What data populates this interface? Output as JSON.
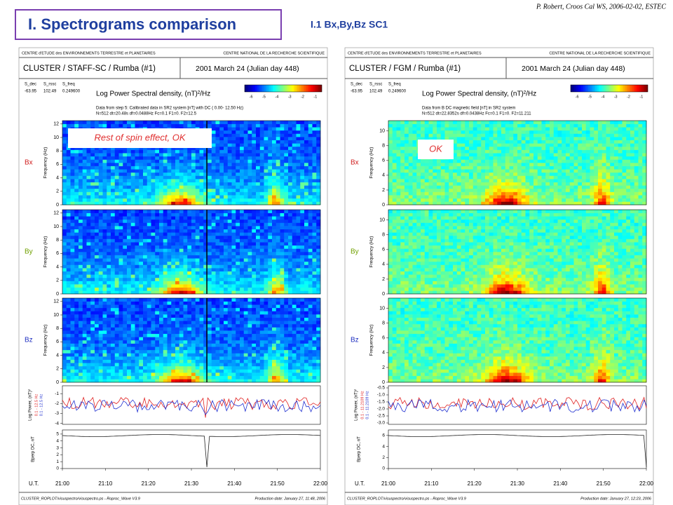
{
  "header": {
    "title": "I. Spectrograms comparison",
    "subtitle": "I.1 Bx,By,Bz SC1",
    "credit": "P. Robert, Croos Cal WS, 2006-02-02, ESTEC"
  },
  "panels": [
    {
      "institute_left": "CENTRE d'ETUDE des ENVIRONNEMENTS TERRESTRE et PLANETAIRES",
      "institute_right": "CENTRE NATIONAL DE LA RECHERCHE SCIENTIFIQUE",
      "instrument": "CLUSTER / STAFF-SC / Rumba  (#1)",
      "date": "2001 March 24  (Julian day 448)",
      "param_names": [
        "S_dec",
        "S_rssc",
        "S_freq"
      ],
      "param_values": [
        "-63.95",
        "102.49",
        "0.249600"
      ],
      "colorbar_title": "Log Power Spectral density, (nT)²/Hz",
      "colorbar_ticks": [
        -6,
        -5,
        -4,
        -3,
        -2,
        -1
      ],
      "info": [
        "Data from step 5: Calibrated data in SR2 system [nT] with DC  ( 0.00-  12.50 Hz)",
        "N=512  dt=20.48s df=0.0488Hz  Fc=0.1  F1=0.  F2=12.5"
      ],
      "components": [
        {
          "name": "Bx",
          "color": "#d02020"
        },
        {
          "name": "By",
          "color": "#70a000"
        },
        {
          "name": "Bz",
          "color": "#2030c0"
        }
      ],
      "freq_label": "Frequency (Hz)",
      "freq_lim": [
        0,
        12.5
      ],
      "freq_ticks": [
        0,
        2,
        4,
        6,
        8,
        10,
        12
      ],
      "annotation": "Rest of spin effect, OK",
      "power_label": "Log Power, (nT)²",
      "power_lim": [
        -4.1,
        -0.2
      ],
      "power_ticks": [
        -1,
        -2,
        -3,
        -4
      ],
      "power_legend": [
        {
          "label": "0.1 - 12.5 Hz",
          "color": "#e02020"
        },
        {
          "label": "0.1 - 12.5 Hz",
          "color": "#2030d0"
        }
      ],
      "bperp_label": "Bperp DC, nT",
      "bperp_lim": [
        0,
        5.6
      ],
      "bperp_ticks": [
        0,
        1,
        2,
        3,
        4,
        5
      ],
      "time_label": "U.T.",
      "time_ticks": [
        "21:00",
        "21:10",
        "21:20",
        "21:30",
        "21:40",
        "21:50",
        "22:00"
      ],
      "footer_left": "CLUSTER_ROPLOT/visuspectro/visuspectro.ps  -  Roproc_Wave V3.9",
      "footer_right": "Production date: January 27, 11:48, 2006"
    },
    {
      "institute_left": "CENTRE d'ETUDE des ENVIRONNEMENTS TERRESTRE et PLANETAIRES",
      "institute_right": "CENTRE NATIONAL DE LA RECHERCHE SCIENTIFIQUE",
      "instrument": "CLUSTER / FGM / Rumba (#1)",
      "date": "2001 March 24  (Julian day 448)",
      "param_names": [
        "S_dec",
        "S_rssc",
        "S_freq"
      ],
      "param_values": [
        "-63.95",
        "102.49",
        "0.249600"
      ],
      "colorbar_title": "Log Power Spectral density, (nT)²/Hz",
      "colorbar_ticks": [
        -6,
        -5,
        -4,
        -3,
        -2,
        -1
      ],
      "info": [
        "Data from B DC magnetic field [nT] in SR2 system",
        "N=512  dt=22.8352s df=0.0438Hz  Fc=0.1  F1=0.  F2=11.211"
      ],
      "components": [
        {
          "name": "Bx",
          "color": "#d02020"
        },
        {
          "name": "By",
          "color": "#70a000"
        },
        {
          "name": "Bz",
          "color": "#2030c0"
        }
      ],
      "freq_label": "Frequency (Hz)",
      "freq_lim": [
        0,
        11.4
      ],
      "freq_ticks": [
        0,
        2,
        4,
        6,
        8,
        10
      ],
      "annotation": "OK",
      "power_label": "Log Power, (nT)²",
      "power_lim": [
        -3.1,
        -0.35
      ],
      "power_ticks": [
        {
          "value": -0.5,
          "label": "-0.5"
        },
        {
          "value": -1,
          "label": "-1.0"
        },
        {
          "value": -1.5,
          "label": "-1.5"
        },
        {
          "value": -2,
          "label": "-2.0"
        },
        {
          "value": -2.5,
          "label": "-2.5"
        },
        {
          "value": -3,
          "label": "-3.0"
        }
      ],
      "power_legend": [
        {
          "label": "0.1 - 11.2109 Hz",
          "color": "#e02020"
        },
        {
          "label": "0.1 - 11.2109 Hz",
          "color": "#2030d0"
        }
      ],
      "bperp_label": "Bperp DC, nT",
      "bperp_lim": [
        0,
        7
      ],
      "bperp_ticks": [
        0,
        2,
        4,
        6
      ],
      "time_label": "U.T.",
      "time_ticks": [
        "21:00",
        "21:10",
        "21:20",
        "21:30",
        "21:40",
        "21:50",
        "22:00"
      ],
      "footer_left": "CLUSTER_ROPLOT/visuspectro/visuspectro.ps  -  Roproc_Wave V3.9",
      "footer_right": "Production date: January 27, 12:23, 2006"
    }
  ]
}
